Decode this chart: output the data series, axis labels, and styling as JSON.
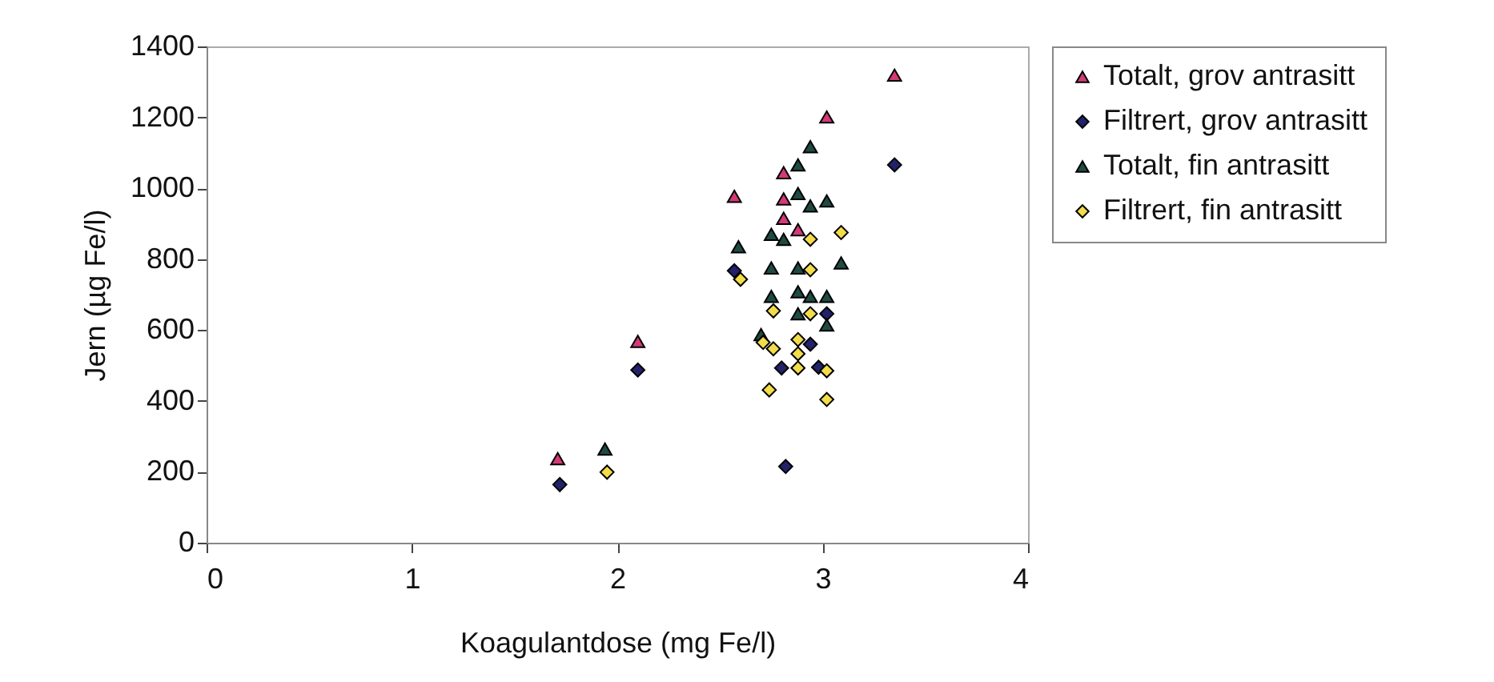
{
  "chart_data": {
    "type": "scatter",
    "xlabel": "Koagulantdose (mg Fe/l)",
    "ylabel": "Jern (µg Fe/l)",
    "xlim": [
      0,
      4
    ],
    "xticks": [
      0,
      1,
      2,
      3,
      4
    ],
    "ylim": [
      0,
      1400
    ],
    "yticks": [
      0,
      200,
      400,
      600,
      800,
      1000,
      1200,
      1400
    ],
    "grid": false,
    "legend": "right",
    "series": [
      {
        "name": "Totalt, grov antrasitt",
        "color": "#d23a78",
        "marker": "triangle",
        "x": [
          1.71,
          2.1,
          2.57,
          2.81,
          2.81,
          2.81,
          2.88,
          3.02,
          3.35
        ],
        "values": [
          237,
          568,
          977,
          1044,
          970,
          915,
          883,
          1201,
          1319
        ]
      },
      {
        "name": "Filtrert, grov antrasitt",
        "color": "#22226a",
        "marker": "diamond",
        "x": [
          1.72,
          2.1,
          2.57,
          2.82,
          2.8,
          2.94,
          2.98,
          3.02,
          3.35
        ],
        "values": [
          164,
          487,
          767,
          215,
          493,
          560,
          495,
          646,
          1066
        ]
      },
      {
        "name": "Totalt, fin antrasitt",
        "color": "#1f4a42",
        "marker": "triangle",
        "x": [
          1.94,
          2.59,
          2.75,
          2.75,
          2.88,
          2.94,
          2.88,
          2.94,
          3.02,
          2.81,
          2.7,
          2.75,
          2.88,
          2.88,
          2.94,
          3.02,
          3.02,
          3.09,
          2.88
        ],
        "values": [
          264,
          835,
          775,
          870,
          1066,
          1117,
          985,
          950,
          964,
          856,
          587,
          695,
          775,
          708,
          695,
          695,
          614,
          789,
          646
        ]
      },
      {
        "name": "Filtrert, fin antrasitt",
        "color": "#f2dc4a",
        "marker": "diamond",
        "x": [
          1.95,
          2.6,
          2.76,
          2.71,
          2.76,
          2.88,
          2.88,
          2.74,
          2.94,
          2.94,
          2.94,
          3.02,
          3.02,
          3.09,
          2.88
        ],
        "values": [
          199,
          743,
          654,
          565,
          547,
          573,
          493,
          431,
          856,
          770,
          646,
          485,
          404,
          875,
          533
        ]
      }
    ]
  }
}
